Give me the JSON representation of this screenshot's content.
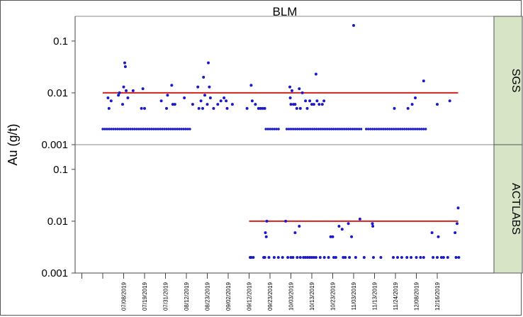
{
  "chart_data": {
    "type": "scatter",
    "title": "BLM",
    "ylabel": "Au (g/t)",
    "xlabel": "",
    "y_scale": "log",
    "ylim": [
      0.001,
      0.3
    ],
    "y_ticks": [
      {
        "value": 0.001,
        "label": "0.001"
      },
      {
        "value": 0.01,
        "label": "0.01"
      },
      {
        "value": 0.1,
        "label": "0.1"
      }
    ],
    "x_tick_labels": [
      "07/08/2019",
      "07/19/2019",
      "07/31/2019",
      "08/12/2019",
      "08/23/2019",
      "09/02/2019",
      "09/12/2019",
      "09/23/2019",
      "10/03/2019",
      "10/13/2019",
      "10/23/2019",
      "11/03/2019",
      "11/13/2019",
      "11/24/2019",
      "12/08/2019",
      "12/16/2019"
    ],
    "panel_strip_color": "#d8e4c6",
    "point_color": "#1a1acc",
    "reference_line_color": "#d62020",
    "panels": [
      {
        "name": "SGS",
        "reference_line": 0.01,
        "baseline": {
          "value": 0.002,
          "ranges": [
            [
              0,
              4.2
            ],
            [
              7.8,
              8.5
            ],
            [
              8.8,
              12.4
            ],
            [
              12.6,
              15.5
            ]
          ]
        },
        "points": [
          {
            "x": 0.25,
            "y": 0.008
          },
          {
            "x": 0.3,
            "y": 0.005
          },
          {
            "x": 0.4,
            "y": 0.007
          },
          {
            "x": 0.75,
            "y": 0.009
          },
          {
            "x": 0.8,
            "y": 0.01
          },
          {
            "x": 0.95,
            "y": 0.006
          },
          {
            "x": 1.0,
            "y": 0.013
          },
          {
            "x": 1.05,
            "y": 0.038
          },
          {
            "x": 1.08,
            "y": 0.032
          },
          {
            "x": 1.12,
            "y": 0.011
          },
          {
            "x": 1.2,
            "y": 0.008
          },
          {
            "x": 1.45,
            "y": 0.011
          },
          {
            "x": 1.85,
            "y": 0.005
          },
          {
            "x": 1.92,
            "y": 0.012
          },
          {
            "x": 2.0,
            "y": 0.005
          },
          {
            "x": 2.8,
            "y": 0.007
          },
          {
            "x": 3.05,
            "y": 0.005
          },
          {
            "x": 3.1,
            "y": 0.009
          },
          {
            "x": 3.3,
            "y": 0.014
          },
          {
            "x": 3.35,
            "y": 0.006
          },
          {
            "x": 3.45,
            "y": 0.006
          },
          {
            "x": 3.9,
            "y": 0.008
          },
          {
            "x": 4.3,
            "y": 0.006
          },
          {
            "x": 4.55,
            "y": 0.013
          },
          {
            "x": 4.6,
            "y": 0.005
          },
          {
            "x": 4.7,
            "y": 0.007
          },
          {
            "x": 4.78,
            "y": 0.005
          },
          {
            "x": 4.82,
            "y": 0.02
          },
          {
            "x": 4.88,
            "y": 0.009
          },
          {
            "x": 5.0,
            "y": 0.006
          },
          {
            "x": 5.05,
            "y": 0.038
          },
          {
            "x": 5.1,
            "y": 0.013
          },
          {
            "x": 5.15,
            "y": 0.008
          },
          {
            "x": 5.3,
            "y": 0.005
          },
          {
            "x": 5.5,
            "y": 0.006
          },
          {
            "x": 5.65,
            "y": 0.007
          },
          {
            "x": 5.8,
            "y": 0.008
          },
          {
            "x": 5.9,
            "y": 0.007
          },
          {
            "x": 5.95,
            "y": 0.005
          },
          {
            "x": 6.2,
            "y": 0.006
          },
          {
            "x": 6.9,
            "y": 0.005
          },
          {
            "x": 7.1,
            "y": 0.014
          },
          {
            "x": 7.15,
            "y": 0.007
          },
          {
            "x": 7.3,
            "y": 0.006
          },
          {
            "x": 7.45,
            "y": 0.005
          },
          {
            "x": 7.55,
            "y": 0.005
          },
          {
            "x": 7.65,
            "y": 0.005
          },
          {
            "x": 7.75,
            "y": 0.005
          },
          {
            "x": 8.95,
            "y": 0.013
          },
          {
            "x": 8.97,
            "y": 0.008
          },
          {
            "x": 9.0,
            "y": 0.006
          },
          {
            "x": 9.05,
            "y": 0.011
          },
          {
            "x": 9.12,
            "y": 0.006
          },
          {
            "x": 9.2,
            "y": 0.006
          },
          {
            "x": 9.28,
            "y": 0.005
          },
          {
            "x": 9.4,
            "y": 0.012
          },
          {
            "x": 9.45,
            "y": 0.005
          },
          {
            "x": 9.55,
            "y": 0.01
          },
          {
            "x": 9.7,
            "y": 0.007
          },
          {
            "x": 9.78,
            "y": 0.005
          },
          {
            "x": 9.9,
            "y": 0.007
          },
          {
            "x": 10.0,
            "y": 0.006
          },
          {
            "x": 10.1,
            "y": 0.006
          },
          {
            "x": 10.2,
            "y": 0.023
          },
          {
            "x": 10.25,
            "y": 0.007
          },
          {
            "x": 10.35,
            "y": 0.006
          },
          {
            "x": 10.5,
            "y": 0.006
          },
          {
            "x": 10.58,
            "y": 0.007
          },
          {
            "x": 12.0,
            "y": 0.2
          },
          {
            "x": 13.95,
            "y": 0.005
          },
          {
            "x": 14.6,
            "y": 0.005
          },
          {
            "x": 14.8,
            "y": 0.006
          },
          {
            "x": 14.95,
            "y": 0.008
          },
          {
            "x": 15.35,
            "y": 0.017
          },
          {
            "x": 16.0,
            "y": 0.006
          },
          {
            "x": 16.6,
            "y": 0.007
          }
        ]
      },
      {
        "name": "ACTLABS",
        "reference_line": 0.01,
        "baseline": null,
        "points": [
          {
            "x": 7.05,
            "y": 0.002
          },
          {
            "x": 7.1,
            "y": 0.002
          },
          {
            "x": 7.2,
            "y": 0.002
          },
          {
            "x": 7.7,
            "y": 0.002
          },
          {
            "x": 7.75,
            "y": 0.002
          },
          {
            "x": 7.78,
            "y": 0.006
          },
          {
            "x": 7.82,
            "y": 0.005
          },
          {
            "x": 7.85,
            "y": 0.01
          },
          {
            "x": 7.95,
            "y": 0.002
          },
          {
            "x": 8.2,
            "y": 0.002
          },
          {
            "x": 8.4,
            "y": 0.002
          },
          {
            "x": 8.6,
            "y": 0.002
          },
          {
            "x": 8.75,
            "y": 0.01
          },
          {
            "x": 8.85,
            "y": 0.002
          },
          {
            "x": 9.0,
            "y": 0.002
          },
          {
            "x": 9.1,
            "y": 0.002
          },
          {
            "x": 9.2,
            "y": 0.006
          },
          {
            "x": 9.3,
            "y": 0.002
          },
          {
            "x": 9.4,
            "y": 0.008
          },
          {
            "x": 9.45,
            "y": 0.002
          },
          {
            "x": 9.6,
            "y": 0.002
          },
          {
            "x": 9.7,
            "y": 0.002
          },
          {
            "x": 9.8,
            "y": 0.002
          },
          {
            "x": 9.9,
            "y": 0.002
          },
          {
            "x": 10.0,
            "y": 0.002
          },
          {
            "x": 10.1,
            "y": 0.002
          },
          {
            "x": 10.2,
            "y": 0.002
          },
          {
            "x": 10.4,
            "y": 0.002
          },
          {
            "x": 10.6,
            "y": 0.002
          },
          {
            "x": 10.8,
            "y": 0.002
          },
          {
            "x": 10.9,
            "y": 0.005
          },
          {
            "x": 11.0,
            "y": 0.005
          },
          {
            "x": 11.05,
            "y": 0.002
          },
          {
            "x": 11.15,
            "y": 0.002
          },
          {
            "x": 11.3,
            "y": 0.008
          },
          {
            "x": 11.45,
            "y": 0.007
          },
          {
            "x": 11.5,
            "y": 0.002
          },
          {
            "x": 11.6,
            "y": 0.002
          },
          {
            "x": 11.75,
            "y": 0.009
          },
          {
            "x": 11.8,
            "y": 0.002
          },
          {
            "x": 11.9,
            "y": 0.005
          },
          {
            "x": 12.1,
            "y": 0.002
          },
          {
            "x": 12.3,
            "y": 0.011
          },
          {
            "x": 12.5,
            "y": 0.002
          },
          {
            "x": 12.9,
            "y": 0.009
          },
          {
            "x": 12.92,
            "y": 0.008
          },
          {
            "x": 12.95,
            "y": 0.002
          },
          {
            "x": 13.3,
            "y": 0.002
          },
          {
            "x": 13.9,
            "y": 0.002
          },
          {
            "x": 14.1,
            "y": 0.002
          },
          {
            "x": 14.3,
            "y": 0.002
          },
          {
            "x": 14.55,
            "y": 0.002
          },
          {
            "x": 14.75,
            "y": 0.002
          },
          {
            "x": 15.0,
            "y": 0.002
          },
          {
            "x": 15.2,
            "y": 0.002
          },
          {
            "x": 15.35,
            "y": 0.002
          },
          {
            "x": 15.75,
            "y": 0.006
          },
          {
            "x": 15.8,
            "y": 0.002
          },
          {
            "x": 16.0,
            "y": 0.002
          },
          {
            "x": 16.05,
            "y": 0.005
          },
          {
            "x": 16.2,
            "y": 0.002
          },
          {
            "x": 16.3,
            "y": 0.002
          },
          {
            "x": 16.5,
            "y": 0.002
          },
          {
            "x": 16.85,
            "y": 0.006
          },
          {
            "x": 16.9,
            "y": 0.002
          },
          {
            "x": 16.95,
            "y": 0.009
          },
          {
            "x": 17.0,
            "y": 0.018
          },
          {
            "x": 17.03,
            "y": 0.002
          }
        ]
      }
    ]
  }
}
